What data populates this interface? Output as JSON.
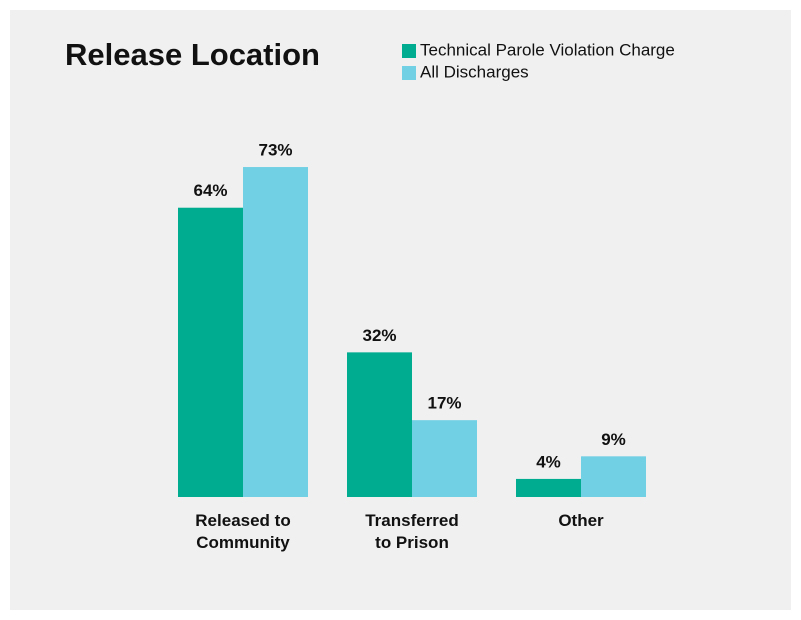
{
  "chart_data": {
    "type": "bar",
    "title": "Release Location",
    "categories": [
      "Released to Community",
      "Transferred to Prison",
      "Other"
    ],
    "series": [
      {
        "name": "Technical Parole Violation Charge",
        "color": "#00ac8f",
        "values": [
          64,
          32,
          4
        ],
        "value_labels": [
          "64%",
          "32%",
          "4%"
        ]
      },
      {
        "name": "All Discharges",
        "color": "#72d0e4",
        "values": [
          73,
          17,
          9
        ],
        "value_labels": [
          "73%",
          "17%",
          "9%"
        ]
      }
    ]
  }
}
